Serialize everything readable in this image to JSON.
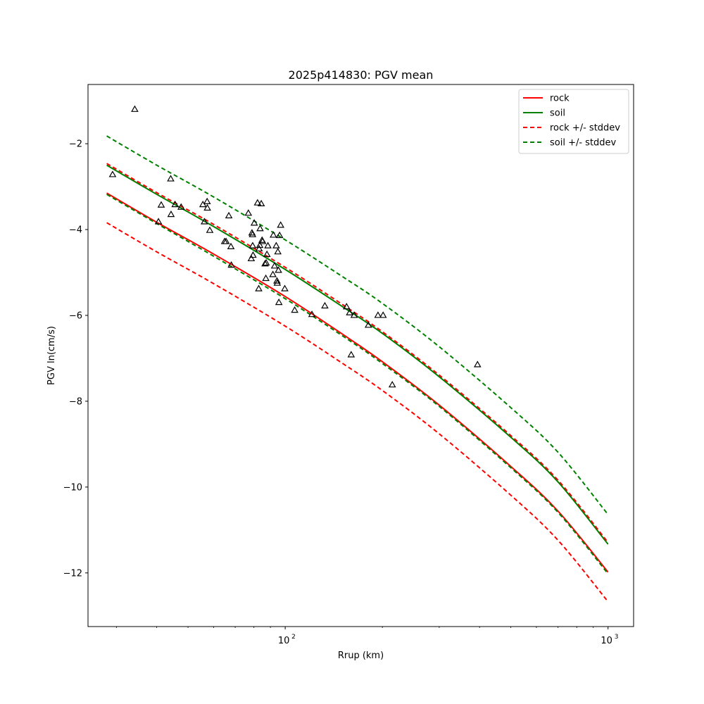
{
  "chart_data": {
    "type": "line",
    "title": "2025p414830: PGV mean",
    "xlabel": "Rrup (km)",
    "ylabel": "PGV ln(cm/s)",
    "xscale": "log",
    "xlim": [
      24.5,
      1200
    ],
    "ylim": [
      -13.25,
      -0.62
    ],
    "x_ticks": [
      100,
      1000
    ],
    "x_tick_labels": [
      "10",
      "10"
    ],
    "x_tick_exponents": [
      "2",
      "3"
    ],
    "y_ticks": [
      -12,
      -10,
      -8,
      -6,
      -4,
      -2
    ],
    "y_tick_labels": [
      "−12",
      "−10",
      "−8",
      "−6",
      "−4",
      "−2"
    ],
    "grid": false,
    "legend_position": "upper right",
    "series": [
      {
        "name": "rock",
        "style": "solid",
        "color": "#ff0000",
        "x": [
          28,
          40,
          60,
          100,
          150,
          200,
          300,
          500,
          700,
          1000
        ],
        "y": [
          -3.15,
          -3.83,
          -4.57,
          -5.56,
          -6.43,
          -7.08,
          -8.09,
          -9.52,
          -10.56,
          -11.98
        ]
      },
      {
        "name": "soil",
        "style": "solid",
        "color": "#008000",
        "x": [
          28,
          40,
          60,
          100,
          150,
          200,
          300,
          500,
          700,
          1000
        ],
        "y": [
          -2.5,
          -3.18,
          -3.93,
          -4.93,
          -5.79,
          -6.42,
          -7.43,
          -8.84,
          -9.88,
          -11.33
        ]
      },
      {
        "name": "rock +/- stddev",
        "style": "dashed",
        "color": "#ff0000",
        "lines": [
          {
            "x": [
              28,
              40,
              60,
              100,
              150,
              200,
              300,
              500,
              700,
              1000
            ],
            "y": [
              -2.46,
              -3.14,
              -3.88,
              -4.88,
              -5.74,
              -6.38,
              -7.39,
              -8.8,
              -9.84,
              -11.29
            ]
          },
          {
            "x": [
              28,
              40,
              60,
              100,
              150,
              200,
              300,
              500,
              700,
              1000
            ],
            "y": [
              -3.84,
              -4.52,
              -5.26,
              -6.25,
              -7.11,
              -7.75,
              -8.76,
              -10.19,
              -11.24,
              -12.67
            ]
          }
        ]
      },
      {
        "name": "soil +/- stddev",
        "style": "dashed",
        "color": "#008000",
        "lines": [
          {
            "x": [
              28,
              40,
              60,
              100,
              150,
              200,
              300,
              500,
              700,
              1000
            ],
            "y": [
              -1.82,
              -2.5,
              -3.24,
              -4.24,
              -5.09,
              -5.72,
              -6.73,
              -8.15,
              -9.19,
              -10.64
            ]
          },
          {
            "x": [
              28,
              40,
              60,
              100,
              150,
              200,
              300,
              500,
              700,
              1000
            ],
            "y": [
              -3.18,
              -3.86,
              -4.62,
              -5.61,
              -6.47,
              -7.12,
              -8.12,
              -9.55,
              -10.59,
              -12.02
            ]
          }
        ]
      }
    ],
    "observations": {
      "marker": "triangle",
      "color": "#000000",
      "points": [
        [
          29.2,
          -2.72
        ],
        [
          34.2,
          -1.2
        ],
        [
          40.5,
          -3.82
        ],
        [
          41.3,
          -3.43
        ],
        [
          44.2,
          -2.82
        ],
        [
          44.3,
          -3.65
        ],
        [
          45.6,
          -3.42
        ],
        [
          47.6,
          -3.48
        ],
        [
          55.6,
          -3.42
        ],
        [
          56.2,
          -3.82
        ],
        [
          57.3,
          -3.35
        ],
        [
          57.4,
          -3.5
        ],
        [
          58.4,
          -4.02
        ],
        [
          64.9,
          -4.28
        ],
        [
          65.6,
          -4.28
        ],
        [
          66.9,
          -3.68
        ],
        [
          67.9,
          -4.4
        ],
        [
          68.1,
          -4.83
        ],
        [
          76.9,
          -3.62
        ],
        [
          78.5,
          -4.68
        ],
        [
          78.9,
          -4.08
        ],
        [
          79.2,
          -4.12
        ],
        [
          79.3,
          -4.38
        ],
        [
          79.5,
          -4.6
        ],
        [
          80.2,
          -3.85
        ],
        [
          82.1,
          -3.38
        ],
        [
          82.8,
          -5.38
        ],
        [
          83.0,
          -4.45
        ],
        [
          83.4,
          -4.37
        ],
        [
          83.6,
          -3.98
        ],
        [
          84.3,
          -3.4
        ],
        [
          84.8,
          -4.25
        ],
        [
          85.1,
          -4.28
        ],
        [
          86.6,
          -4.8
        ],
        [
          87.1,
          -5.14
        ],
        [
          87.3,
          -4.78
        ],
        [
          87.8,
          -4.58
        ],
        [
          88.4,
          -4.38
        ],
        [
          91.6,
          -5.05
        ],
        [
          91.9,
          -4.13
        ],
        [
          92.7,
          -4.85
        ],
        [
          93.8,
          -4.38
        ],
        [
          94.3,
          -5.2
        ],
        [
          94.5,
          -5.25
        ],
        [
          94.9,
          -4.52
        ],
        [
          95.3,
          -4.95
        ],
        [
          95.6,
          -5.7
        ],
        [
          96.1,
          -4.14
        ],
        [
          96.8,
          -3.9
        ],
        [
          99.7,
          -5.38
        ],
        [
          107.0,
          -5.88
        ],
        [
          121.0,
          -5.98
        ],
        [
          132.7,
          -5.78
        ],
        [
          154.9,
          -5.8
        ],
        [
          158.3,
          -5.94
        ],
        [
          160.1,
          -6.92
        ],
        [
          163.5,
          -6.0
        ],
        [
          181.0,
          -6.23
        ],
        [
          193.8,
          -6.0
        ],
        [
          201.0,
          -6.0
        ],
        [
          214.6,
          -7.62
        ],
        [
          394.2,
          -7.15
        ]
      ]
    }
  },
  "colors": {
    "rock": "#ff0000",
    "soil": "#008000",
    "markers": "#000000"
  }
}
